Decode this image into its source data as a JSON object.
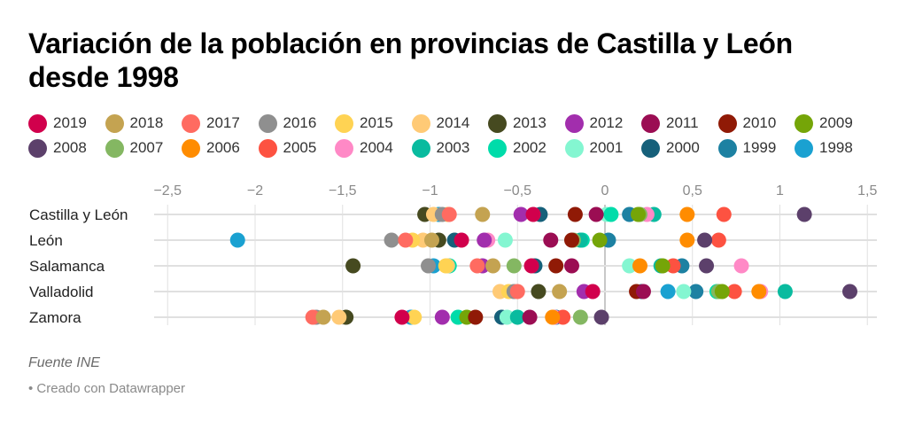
{
  "chart_data": {
    "type": "scatter",
    "title": "Variación de la población en provincias de Castilla y León desde 1998",
    "xlabel": "",
    "ylabel": "",
    "xlim": [
      -2.5,
      1.5
    ],
    "grid": true,
    "legend_position": "top",
    "x_ticks": [
      -2.5,
      -2,
      -1.5,
      -1,
      -0.5,
      0,
      0.5,
      1,
      1.5
    ],
    "x_tick_labels": [
      "−2,5",
      "−2",
      "−1,5",
      "−1",
      "−0,5",
      "0",
      "0,5",
      "1",
      "1,5"
    ],
    "categories": [
      "Castilla y León",
      "León",
      "Salamanca",
      "Valladolid",
      "Zamora"
    ],
    "series": [
      {
        "name": "2019",
        "color": "#d1004c",
        "values": [
          -0.41,
          -0.82,
          -0.42,
          -0.07,
          -1.16
        ]
      },
      {
        "name": "2018",
        "color": "#c4a351",
        "values": [
          -0.7,
          -0.99,
          -0.64,
          -0.26,
          -1.61
        ]
      },
      {
        "name": "2017",
        "color": "#ff6b61",
        "values": [
          -0.89,
          -1.14,
          -0.73,
          -0.5,
          -1.67
        ]
      },
      {
        "name": "2016",
        "color": "#8f8f8f",
        "values": [
          -0.93,
          -1.22,
          -1.01,
          -0.52,
          -1.65
        ]
      },
      {
        "name": "2015",
        "color": "#ffd353",
        "values": [
          -0.9,
          -1.1,
          -0.91,
          -0.55,
          -1.09
        ]
      },
      {
        "name": "2014",
        "color": "#ffca76",
        "values": [
          -0.98,
          -1.04,
          -0.9,
          -0.6,
          -1.52
        ]
      },
      {
        "name": "2013",
        "color": "#464a20",
        "values": [
          -1.03,
          -0.95,
          -1.44,
          -0.38,
          -1.48
        ]
      },
      {
        "name": "2012",
        "color": "#a22ead",
        "values": [
          -0.48,
          -0.69,
          -0.7,
          -0.12,
          -0.93
        ]
      },
      {
        "name": "2011",
        "color": "#9b0d53",
        "values": [
          -0.05,
          -0.31,
          -0.19,
          0.22,
          -0.43
        ]
      },
      {
        "name": "2010",
        "color": "#901a06",
        "values": [
          -0.17,
          -0.19,
          -0.28,
          0.18,
          -0.74
        ]
      },
      {
        "name": "2009",
        "color": "#75a508",
        "values": [
          0.19,
          -0.03,
          0.33,
          0.67,
          -0.79
        ]
      },
      {
        "name": "2008",
        "color": "#5c406b",
        "values": [
          1.14,
          0.57,
          0.58,
          1.4,
          -0.02
        ]
      },
      {
        "name": "2007",
        "color": "#84b762",
        "values": [
          0.2,
          -0.18,
          -0.52,
          0.65,
          -0.14
        ]
      },
      {
        "name": "2006",
        "color": "#ff8c00",
        "values": [
          0.47,
          0.47,
          0.2,
          0.88,
          -0.3
        ]
      },
      {
        "name": "2005",
        "color": "#fd5241",
        "values": [
          0.68,
          0.65,
          0.39,
          0.74,
          -0.24
        ]
      },
      {
        "name": "2004",
        "color": "#ff89c6",
        "values": [
          0.24,
          -0.67,
          0.78,
          0.89,
          -0.29
        ]
      },
      {
        "name": "2003",
        "color": "#09bb9f",
        "values": [
          0.28,
          -0.14,
          0.32,
          1.03,
          -0.5
        ]
      },
      {
        "name": "2002",
        "color": "#00dcaa",
        "values": [
          0.035,
          -0.13,
          -0.89,
          0.64,
          -0.84
        ]
      },
      {
        "name": "2001",
        "color": "#84f6d1",
        "values": [
          0.01,
          -0.57,
          0.14,
          0.45,
          -0.56
        ]
      },
      {
        "name": "2000",
        "color": "#16607a",
        "values": [
          -0.37,
          -0.86,
          -0.4,
          0.21,
          -0.59
        ]
      },
      {
        "name": "1999",
        "color": "#1d81a2",
        "values": [
          0.14,
          0.02,
          0.44,
          0.52,
          -0.28
        ]
      },
      {
        "name": "1998",
        "color": "#1aa1d1",
        "values": [
          -0.95,
          -2.1,
          -0.98,
          0.36,
          -1.11
        ]
      }
    ]
  },
  "footer": {
    "source": "Fuente INE",
    "credit": "• Creado con Datawrapper"
  }
}
